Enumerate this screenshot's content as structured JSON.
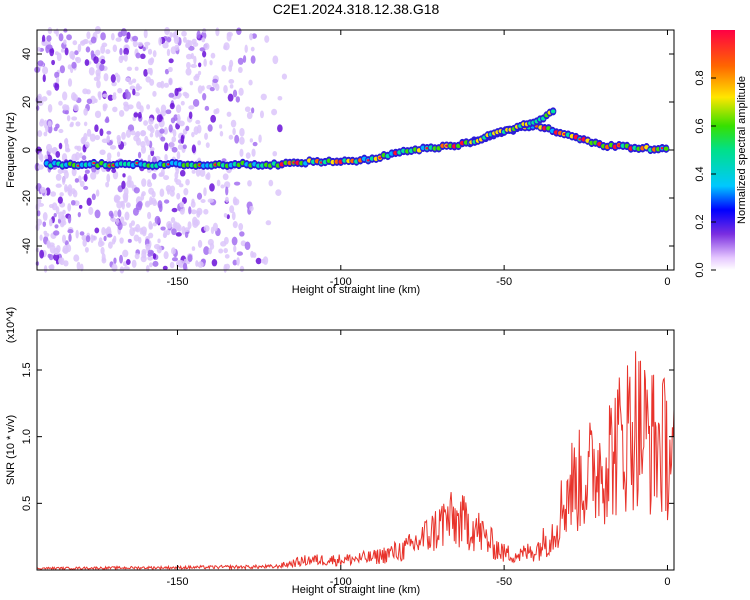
{
  "title": "C2E1.2024.318.12.38.G18",
  "chart_data": [
    {
      "type": "heatmap",
      "xlabel": "Height of straight line (km)",
      "ylabel": "Frequency (Hz)",
      "xlim": [
        -193,
        2
      ],
      "ylim": [
        -50,
        50
      ],
      "x_ticks": [
        -150,
        -100,
        -50,
        0
      ],
      "y_ticks": [
        -40,
        -20,
        0,
        20,
        40
      ],
      "colorbar": {
        "label": "Normalized spectral amplitude",
        "range": [
          0,
          1
        ],
        "ticks": [
          0.0,
          0.2,
          0.4,
          0.6,
          0.8
        ]
      },
      "ridge": {
        "x": [
          -190,
          -175,
          -160,
          -140,
          -120,
          -110,
          -100,
          -90,
          -80,
          -70,
          -60,
          -50,
          -40,
          -35,
          -30,
          -25,
          -20,
          -10,
          0
        ],
        "frequency": [
          -6,
          -6,
          -6,
          -6,
          -6,
          -5,
          -5,
          -4,
          0,
          1,
          3,
          8,
          10,
          8,
          6,
          4,
          2,
          1,
          0
        ]
      },
      "upper_branch": {
        "x": [
          -60,
          -55,
          -50,
          -45,
          -40,
          -35
        ],
        "frequency": [
          3,
          6,
          8,
          10,
          12,
          16
        ]
      },
      "scatter_extent_x": [
        -193,
        -115
      ]
    },
    {
      "type": "line",
      "xlabel": "Height of straight line (km)",
      "ylabel": "SNR (10 * v/v)",
      "y_multiplier": "(x10^4)",
      "xlim": [
        -193,
        2
      ],
      "ylim": [
        0,
        1.8
      ],
      "x_ticks": [
        -150,
        -100,
        -50,
        0
      ],
      "y_ticks": [
        0.5,
        1.0,
        1.5
      ],
      "y_tick_labels": [
        "0.5",
        "1.0",
        "1.5"
      ],
      "series": [
        {
          "color": "#e8332b",
          "envelope": {
            "x": [
              -193,
              -150,
              -120,
              -110,
              -100,
              -90,
              -80,
              -72,
              -68,
              -60,
              -55,
              -50,
              -45,
              -40,
              -35,
              -30,
              -25,
              -20,
              -15,
              -10,
              -5,
              0,
              2
            ],
            "y": [
              0.02,
              0.03,
              0.04,
              0.12,
              0.12,
              0.15,
              0.25,
              0.45,
              0.6,
              0.55,
              0.35,
              0.2,
              0.18,
              0.25,
              0.45,
              1.0,
              1.1,
              1.3,
              1.5,
              1.78,
              1.55,
              1.45,
              1.35
            ]
          }
        }
      ]
    }
  ]
}
